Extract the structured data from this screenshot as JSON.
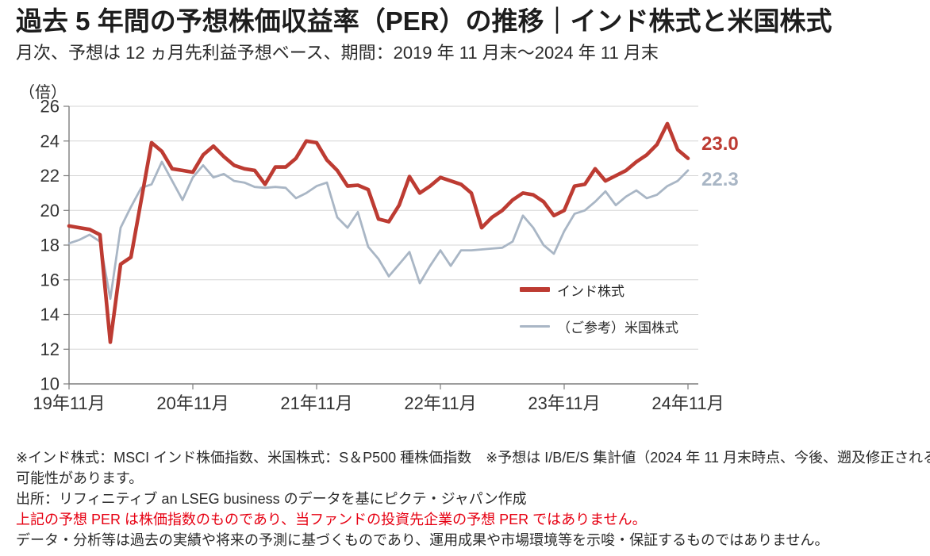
{
  "title": "過去 5 年間の予想株価収益率（PER）の推移｜インド株式と米国株式",
  "subtitle": "月次、予想は 12 ヵ月先利益予想ベース、期間：2019 年 11 月末～2024 年 11 月末",
  "chart_data": {
    "type": "line",
    "title": "過去 5 年間の予想株価収益率（PER）の推移",
    "grid": true,
    "legend_position": "inside-right",
    "y_axis": {
      "unit_label": "（倍）",
      "min": 10,
      "max": 26,
      "tick_step": 2,
      "ticks": [
        26,
        24,
        22,
        20,
        18,
        16,
        14,
        12,
        10
      ]
    },
    "x_axis": {
      "tick_labels": [
        "19年11月",
        "20年11月",
        "21年11月",
        "22年11月",
        "23年11月",
        "24年11月"
      ],
      "tick_month_indices": [
        0,
        12,
        24,
        36,
        48,
        60
      ],
      "start": "2019-11",
      "end": "2024-11",
      "frequency": "monthly"
    },
    "series": [
      {
        "id": "india",
        "name": "インド株式",
        "color": "#bd3b32",
        "end_label": "23.0",
        "values": [
          19.1,
          19.0,
          18.9,
          18.6,
          12.4,
          16.9,
          17.3,
          20.6,
          23.9,
          23.4,
          22.4,
          22.3,
          22.2,
          23.2,
          23.7,
          23.1,
          22.6,
          22.4,
          22.3,
          21.5,
          22.5,
          22.5,
          23.0,
          24.0,
          23.9,
          22.9,
          22.3,
          21.4,
          21.45,
          21.2,
          19.5,
          19.35,
          20.3,
          21.95,
          21.0,
          21.4,
          21.9,
          21.7,
          21.5,
          21.0,
          19.0,
          19.6,
          20.0,
          20.6,
          21.0,
          20.9,
          20.5,
          19.7,
          20.0,
          21.4,
          21.5,
          22.4,
          21.7,
          22.0,
          22.3,
          22.8,
          23.2,
          23.8,
          25.0,
          23.5,
          23.0
        ]
      },
      {
        "id": "us",
        "name": "（ご参考）米国株式",
        "color": "#a9b6c5",
        "end_label": "22.3",
        "values": [
          18.1,
          18.3,
          18.6,
          18.2,
          14.9,
          19.0,
          20.2,
          21.3,
          21.5,
          22.8,
          21.7,
          20.6,
          21.9,
          22.6,
          21.9,
          22.1,
          21.7,
          21.6,
          21.35,
          21.3,
          21.35,
          21.3,
          20.7,
          21.0,
          21.4,
          21.6,
          19.6,
          19.0,
          19.9,
          17.9,
          17.2,
          16.2,
          16.9,
          17.6,
          15.8,
          16.8,
          17.7,
          16.8,
          17.7,
          17.7,
          17.75,
          17.8,
          17.85,
          18.2,
          19.7,
          19.0,
          18.0,
          17.5,
          18.8,
          19.8,
          20.0,
          20.5,
          21.1,
          20.3,
          20.8,
          21.15,
          20.7,
          20.9,
          21.4,
          21.7,
          22.3
        ]
      }
    ]
  },
  "footnotes": [
    {
      "text": "※インド株式：MSCI インド株価指数、米国株式：S＆P500 種株価指数　※予想は I/B/E/S 集計値（2024 年 11 月末時点、今後、遡及修正される",
      "emphasis": false
    },
    {
      "text": "可能性があります。",
      "emphasis": false
    },
    {
      "text": "出所：リフィニティブ an LSEG business のデータを基にピクテ・ジャパン作成",
      "emphasis": false
    },
    {
      "text": "上記の予想 PER は株価指数のものであり、当ファンドの投資先企業の予想 PER ではありません。",
      "emphasis": true
    },
    {
      "text": "データ・分析等は過去の実績や将来の予測に基づくものであり、運用成果や市場環境等を示唆・保証するものではありません。",
      "emphasis": false
    }
  ],
  "colors": {
    "emphasis_red": "#e60012",
    "axis": "#7d7d7d",
    "grid": "#d6d6d6",
    "text": "#2b2b2b"
  }
}
